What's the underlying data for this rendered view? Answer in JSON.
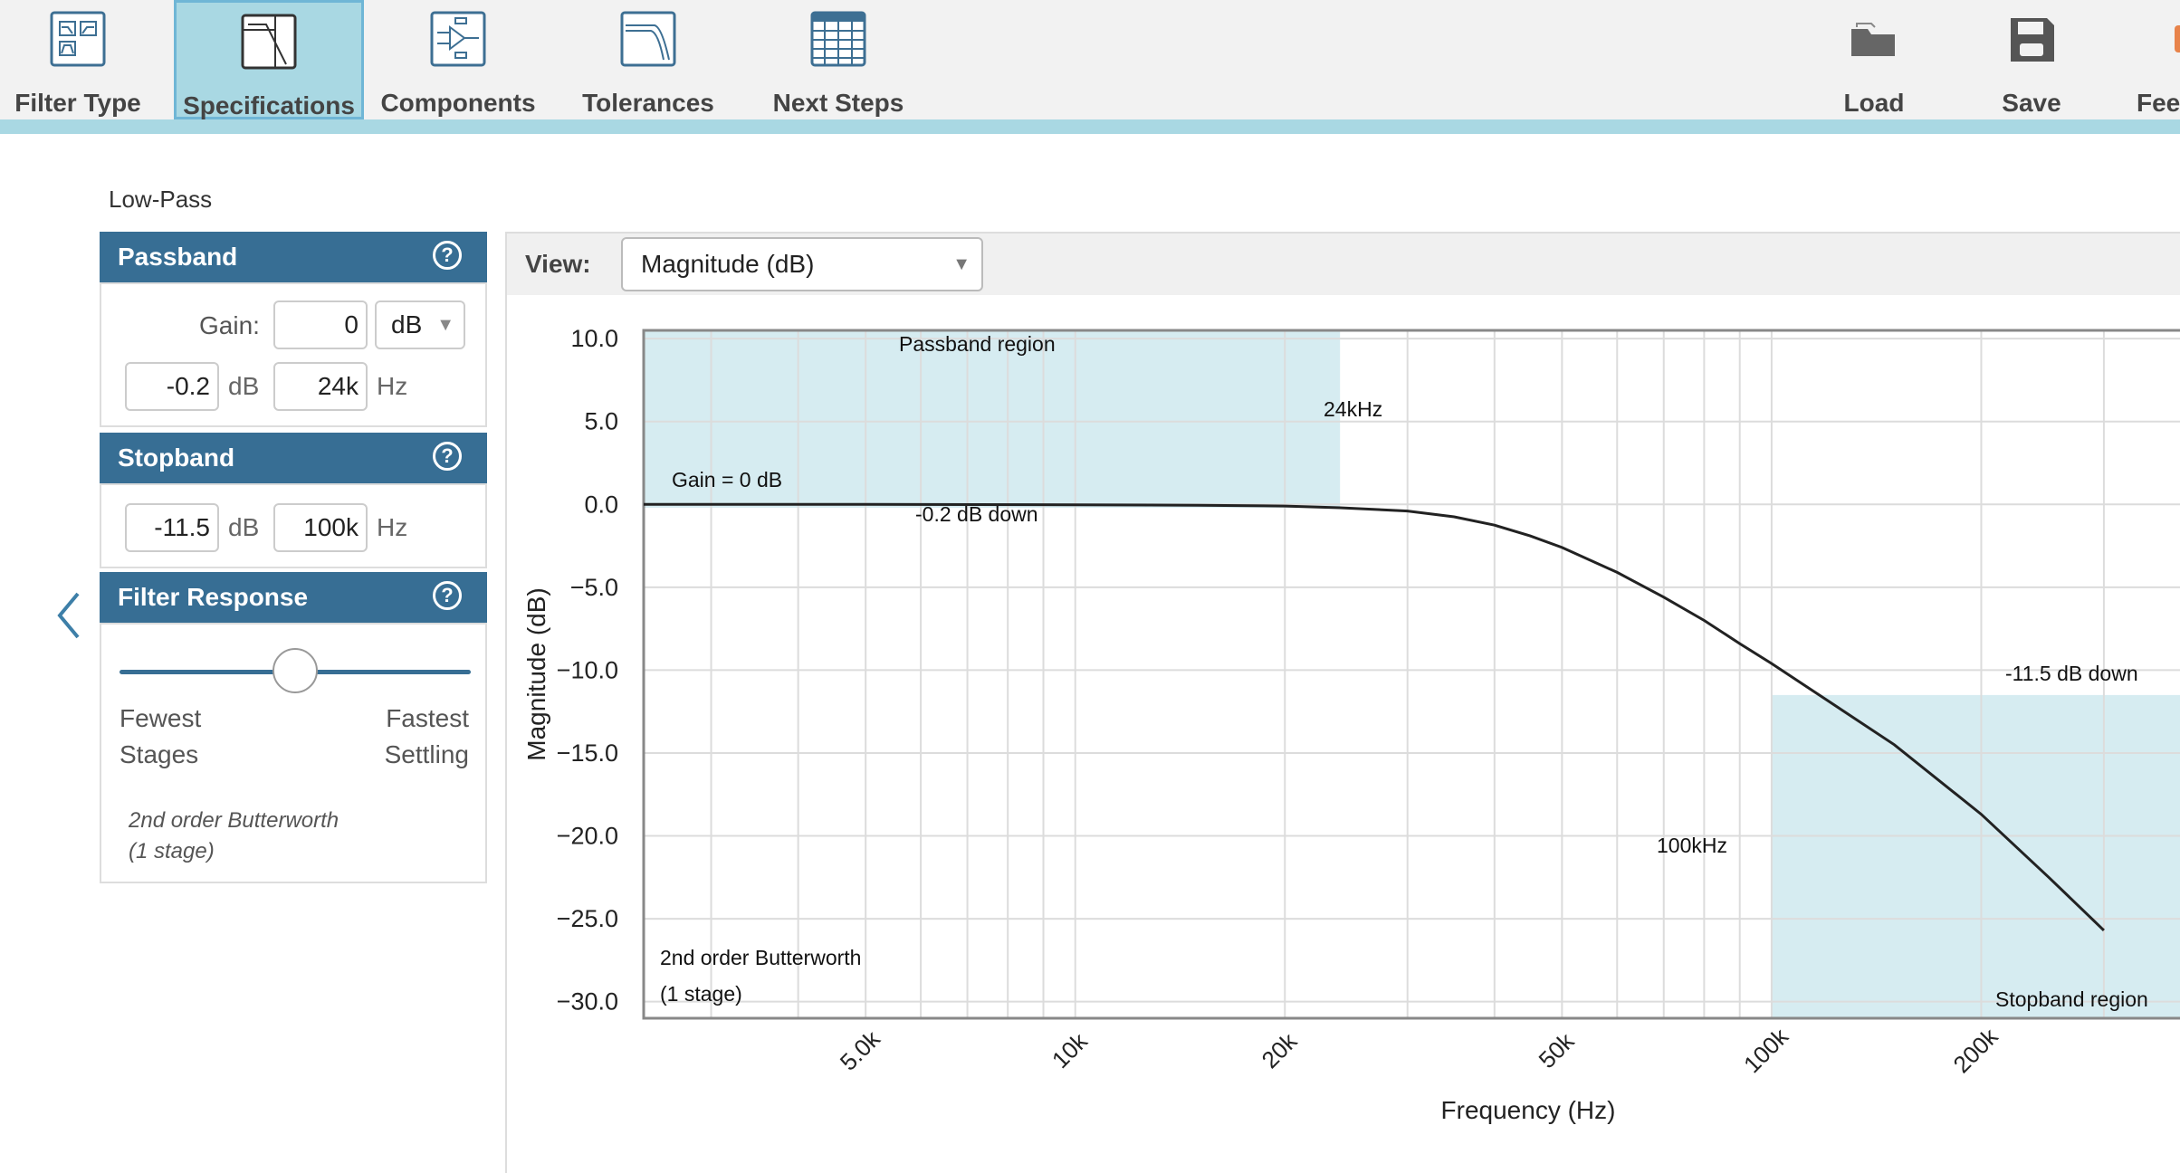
{
  "toolbar": {
    "items": [
      {
        "label": "Filter Type",
        "icon": "filter-type-icon",
        "active": false
      },
      {
        "label": "Specifications",
        "icon": "specifications-icon",
        "active": true
      },
      {
        "label": "Components",
        "icon": "components-icon",
        "active": false
      },
      {
        "label": "Tolerances",
        "icon": "tolerances-icon",
        "active": false
      },
      {
        "label": "Next Steps",
        "icon": "next-steps-icon",
        "active": false
      }
    ],
    "right_items": [
      {
        "label": "Load",
        "icon": "folder-icon"
      },
      {
        "label": "Save",
        "icon": "floppy-disk-icon"
      },
      {
        "label": "Fee",
        "icon": "feedback-icon"
      }
    ],
    "accent": "#a9d8e3"
  },
  "filter_kind": "Low-Pass",
  "passband": {
    "title": "Passband",
    "gain_label": "Gain:",
    "gain_value": "0",
    "gain_unit": "dB",
    "ripple_value": "-0.2",
    "ripple_unit": "dB",
    "freq_value": "24k",
    "freq_unit": "Hz"
  },
  "stopband": {
    "title": "Stopband",
    "atten_value": "-11.5",
    "atten_unit": "dB",
    "freq_value": "100k",
    "freq_unit": "Hz"
  },
  "filter_response": {
    "title": "Filter Response",
    "slider_level": 0.5,
    "left_label_1": "Fewest",
    "left_label_2": "Stages",
    "right_label_1": "Fastest",
    "right_label_2": "Settling",
    "summary_1": "2nd order Butterworth",
    "summary_2": "(1 stage)"
  },
  "view": {
    "label": "View:",
    "selected": "Magnitude (dB)"
  },
  "header_color": "#376e94",
  "chart_data": {
    "type": "line",
    "xlabel": "Frequency (Hz)",
    "ylabel": "Magnitude (dB)",
    "x_scale": "log",
    "xlim": [
      2400,
      400000
    ],
    "ylim": [
      -31,
      10.5
    ],
    "grid": true,
    "y_ticks": [
      10,
      5,
      0,
      -5,
      -10,
      -15,
      -20,
      -25,
      -30
    ],
    "y_tick_labels": [
      "10.0",
      "5.0",
      "0.0",
      "−5.0",
      "−10.0",
      "−15.0",
      "−20.0",
      "−25.0",
      "−30.0"
    ],
    "x_ticks": [
      5000,
      10000,
      20000,
      50000,
      100000,
      200000
    ],
    "x_tick_labels": [
      "5.0k",
      "10k",
      "20k",
      "50k",
      "100k",
      "200k"
    ],
    "series": [
      {
        "values_x": [
          2400,
          5000,
          10000,
          15000,
          20000,
          24000,
          30000,
          35000,
          40000,
          45000,
          50000,
          60000,
          70000,
          80000,
          90000,
          100000,
          120000,
          150000,
          200000,
          250000,
          300000
        ],
        "values_y": [
          0,
          0,
          -0.02,
          -0.05,
          -0.1,
          -0.2,
          -0.4,
          -0.75,
          -1.25,
          -1.9,
          -2.6,
          -4.1,
          -5.6,
          -7.0,
          -8.4,
          -9.6,
          -11.8,
          -14.5,
          -18.7,
          -22.5,
          -25.7
        ]
      }
    ],
    "passband_region": {
      "label": "Passband region",
      "f": 24000,
      "f_label": "24kHz",
      "ripple_label": "-0.2 dB down",
      "gain_label": "Gain = 0 dB"
    },
    "stopband_region": {
      "label": "Stopband region",
      "f": 100000,
      "f_label": "100kHz",
      "atten": -11.5,
      "atten_label": "-11.5 dB down"
    },
    "annotation_1": "2nd order Butterworth",
    "annotation_2": "(1 stage)",
    "region_color": "#d6ecf1",
    "curve_color": "#222222"
  }
}
